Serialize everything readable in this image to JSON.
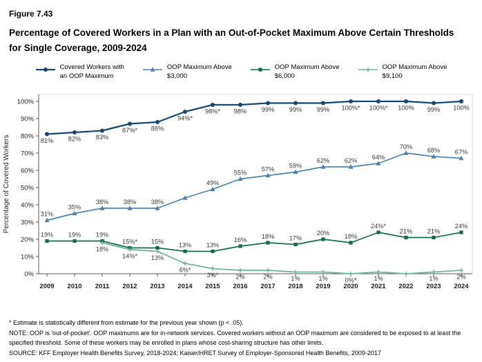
{
  "figure": {
    "label": "Figure 7.43",
    "title": "Percentage of Covered Workers in a Plan with an Out-of-Pocket Maximum Above Certain Thresholds for Single Coverage, 2009-2024"
  },
  "chart_data": {
    "type": "line",
    "x": [
      2009,
      2010,
      2011,
      2012,
      2013,
      2014,
      2015,
      2016,
      2017,
      2018,
      2019,
      2020,
      2021,
      2022,
      2023,
      2024
    ],
    "xlabel": "",
    "ylabel": "Percentage of Covered Workers",
    "ylim": [
      0,
      100
    ],
    "yticks": [
      "0%",
      "10%",
      "20%",
      "30%",
      "40%",
      "50%",
      "60%",
      "70%",
      "80%",
      "90%",
      "100%"
    ],
    "grid": false,
    "legend_position": "top",
    "series": [
      {
        "name": "Covered Workers with an OOP Maximum",
        "legend_lines": [
          "Covered Workers with",
          "an OOP Maximum"
        ],
        "color": "#17466f",
        "marker": "circle",
        "label_position": "below",
        "values": [
          81,
          82,
          83,
          87,
          88,
          94,
          98,
          98,
          99,
          99,
          99,
          100,
          100,
          100,
          99,
          100
        ],
        "labels": [
          "81%",
          "82%",
          "83%",
          "87%*",
          "88%",
          "94%*",
          "98%*",
          "98%",
          "99%",
          "99%",
          "99%",
          "100%*",
          "100%*",
          "100%",
          "99%",
          "100%"
        ]
      },
      {
        "name": "OOP Maximum Above $3,000",
        "legend_lines": [
          "OOP Maximum Above",
          "$3,000"
        ],
        "color": "#4e80b0",
        "marker": "triangle",
        "label_position": "above",
        "values": [
          31,
          35,
          38,
          38,
          38,
          44,
          49,
          55,
          57,
          59,
          62,
          62,
          64,
          70,
          68,
          67
        ],
        "labels": [
          "31%",
          "35%",
          "38%",
          "38%",
          "38%",
          "",
          "49%",
          "55%",
          "57%",
          "59%",
          "62%",
          "62%",
          "64%",
          "70%",
          "68%",
          "67%"
        ]
      },
      {
        "name": "OOP Maximum Above $6,000",
        "legend_lines": [
          "OOP Maximum Above",
          "$6,000"
        ],
        "color": "#146c46",
        "marker": "square",
        "label_position": "above",
        "values": [
          19,
          19,
          19,
          15,
          15,
          13,
          13,
          16,
          18,
          17,
          20,
          18,
          24,
          21,
          21,
          24
        ],
        "labels": [
          "19%",
          "19%",
          "19%",
          "15%*",
          "15%",
          "13%",
          "13%",
          "16%",
          "18%",
          "17%",
          "20%",
          "18%",
          "24%*",
          "21%",
          "21%",
          "24%"
        ]
      },
      {
        "name": "OOP Maximum Above $9,100",
        "legend_lines": [
          "OOP Maximum Above",
          "$9,100"
        ],
        "color": "#6fb392",
        "marker": "plus",
        "label_position": "below",
        "values": [
          null,
          null,
          18,
          14,
          13,
          6,
          3,
          2,
          2,
          1,
          1,
          0,
          1,
          0,
          1,
          2
        ],
        "labels": [
          "",
          "",
          "18%",
          "14%*",
          "13%",
          "6%*",
          "3%*",
          "2%",
          "2%",
          "1%",
          "1%",
          "0%*",
          "1%",
          "",
          "1%",
          "2%"
        ]
      }
    ]
  },
  "footnotes": {
    "star": "* Estimate is statistically different from estimate for the previous year shown (p < .05).",
    "note": "NOTE: OOP is 'out-of-pocket'. OOP maximums are for in-network services. Covered workers without an OOP maximum are considered to be exposed to at least the specified threshold. Some of these workers may be enrolled in plans whose cost-sharing structure has other limits.",
    "source": "SOURCE: KFF Employer Health Benefits Survey, 2018-2024; Kaiser/HRET Survey of Employer-Sponsored Health Benefits, 2009-2017"
  }
}
